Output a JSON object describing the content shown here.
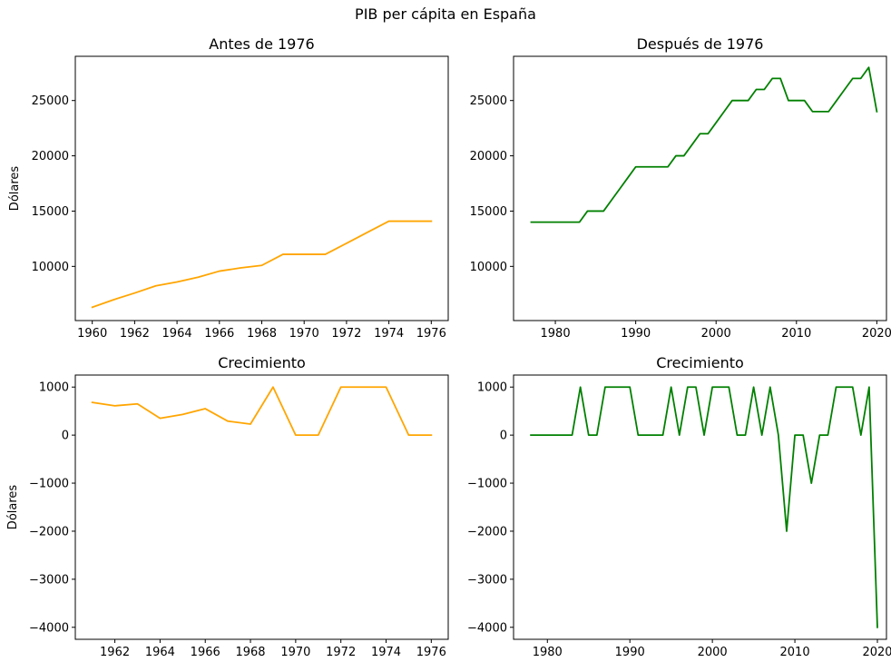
{
  "suptitle": "PIB per cápita en España",
  "chart_data": [
    {
      "type": "line",
      "title": "Antes de 1976",
      "xlabel": "",
      "ylabel": "Dólares",
      "color": "#ffa500",
      "xlim": [
        1959.2,
        1976.8
      ],
      "ylim": [
        5100,
        29000
      ],
      "xticks": [
        1960,
        1962,
        1964,
        1966,
        1968,
        1970,
        1972,
        1974,
        1976
      ],
      "yticks": [
        10000,
        15000,
        20000,
        25000
      ],
      "x": [
        1960,
        1961,
        1962,
        1963,
        1964,
        1965,
        1966,
        1967,
        1968,
        1969,
        1970,
        1971,
        1972,
        1973,
        1974,
        1975,
        1976
      ],
      "y": [
        6300,
        6980,
        7590,
        8240,
        8590,
        9020,
        9570,
        9860,
        10090,
        11090,
        11090,
        11090,
        12090,
        13090,
        14090,
        14090,
        14090
      ]
    },
    {
      "type": "line",
      "title": "Después de 1976",
      "xlabel": "",
      "ylabel": "",
      "color": "#008000",
      "xlim": [
        1974.8,
        2021.2
      ],
      "ylim": [
        5100,
        29000
      ],
      "xticks": [
        1980,
        1990,
        2000,
        2010,
        2020
      ],
      "yticks": [
        10000,
        15000,
        20000,
        25000
      ],
      "x": [
        1977,
        1978,
        1979,
        1980,
        1981,
        1982,
        1983,
        1984,
        1985,
        1986,
        1987,
        1988,
        1989,
        1990,
        1991,
        1992,
        1993,
        1994,
        1995,
        1996,
        1997,
        1998,
        1999,
        2000,
        2001,
        2002,
        2003,
        2004,
        2005,
        2006,
        2007,
        2008,
        2009,
        2010,
        2011,
        2012,
        2013,
        2014,
        2015,
        2016,
        2017,
        2018,
        2019,
        2020
      ],
      "y": [
        14000,
        14000,
        14000,
        14000,
        14000,
        14000,
        14000,
        15000,
        15000,
        15000,
        16000,
        17000,
        18000,
        19000,
        19000,
        19000,
        19000,
        19000,
        20000,
        20000,
        21000,
        22000,
        22000,
        23000,
        24000,
        25000,
        25000,
        25000,
        26000,
        26000,
        27000,
        27000,
        25000,
        25000,
        25000,
        24000,
        24000,
        24000,
        25000,
        26000,
        27000,
        27000,
        28000,
        24000
      ]
    },
    {
      "type": "line",
      "title": "Crecimiento",
      "xlabel": "",
      "ylabel": "Dólares",
      "color": "#ffa500",
      "xlim": [
        1960.25,
        1976.75
      ],
      "ylim": [
        -4250,
        1250
      ],
      "xticks": [
        1962,
        1964,
        1966,
        1968,
        1970,
        1972,
        1974,
        1976
      ],
      "yticks": [
        -4000,
        -3000,
        -2000,
        -1000,
        0,
        1000
      ],
      "x": [
        1961,
        1962,
        1963,
        1964,
        1965,
        1966,
        1967,
        1968,
        1969,
        1970,
        1971,
        1972,
        1973,
        1974,
        1975,
        1976
      ],
      "y": [
        680,
        610,
        650,
        350,
        430,
        550,
        290,
        230,
        1000,
        0,
        0,
        1000,
        1000,
        1000,
        0,
        0
      ]
    },
    {
      "type": "line",
      "title": "Crecimiento",
      "xlabel": "",
      "ylabel": "",
      "color": "#008000",
      "xlim": [
        1975.9,
        2021.1
      ],
      "ylim": [
        -4250,
        1250
      ],
      "xticks": [
        1980,
        1990,
        2000,
        2010,
        2020
      ],
      "yticks": [
        -4000,
        -3000,
        -2000,
        -1000,
        0,
        1000
      ],
      "x": [
        1978,
        1979,
        1980,
        1981,
        1982,
        1983,
        1984,
        1985,
        1986,
        1987,
        1988,
        1989,
        1990,
        1991,
        1992,
        1993,
        1994,
        1995,
        1996,
        1997,
        1998,
        1999,
        2000,
        2001,
        2002,
        2003,
        2004,
        2005,
        2006,
        2007,
        2008,
        2009,
        2010,
        2011,
        2012,
        2013,
        2014,
        2015,
        2016,
        2017,
        2018,
        2019,
        2020
      ],
      "y": [
        0,
        0,
        0,
        0,
        0,
        0,
        1000,
        0,
        0,
        1000,
        1000,
        1000,
        1000,
        0,
        0,
        0,
        0,
        1000,
        0,
        1000,
        1000,
        0,
        1000,
        1000,
        1000,
        0,
        0,
        1000,
        0,
        1000,
        0,
        -2000,
        0,
        0,
        -1000,
        0,
        0,
        1000,
        1000,
        1000,
        0,
        1000,
        -4000
      ]
    }
  ]
}
